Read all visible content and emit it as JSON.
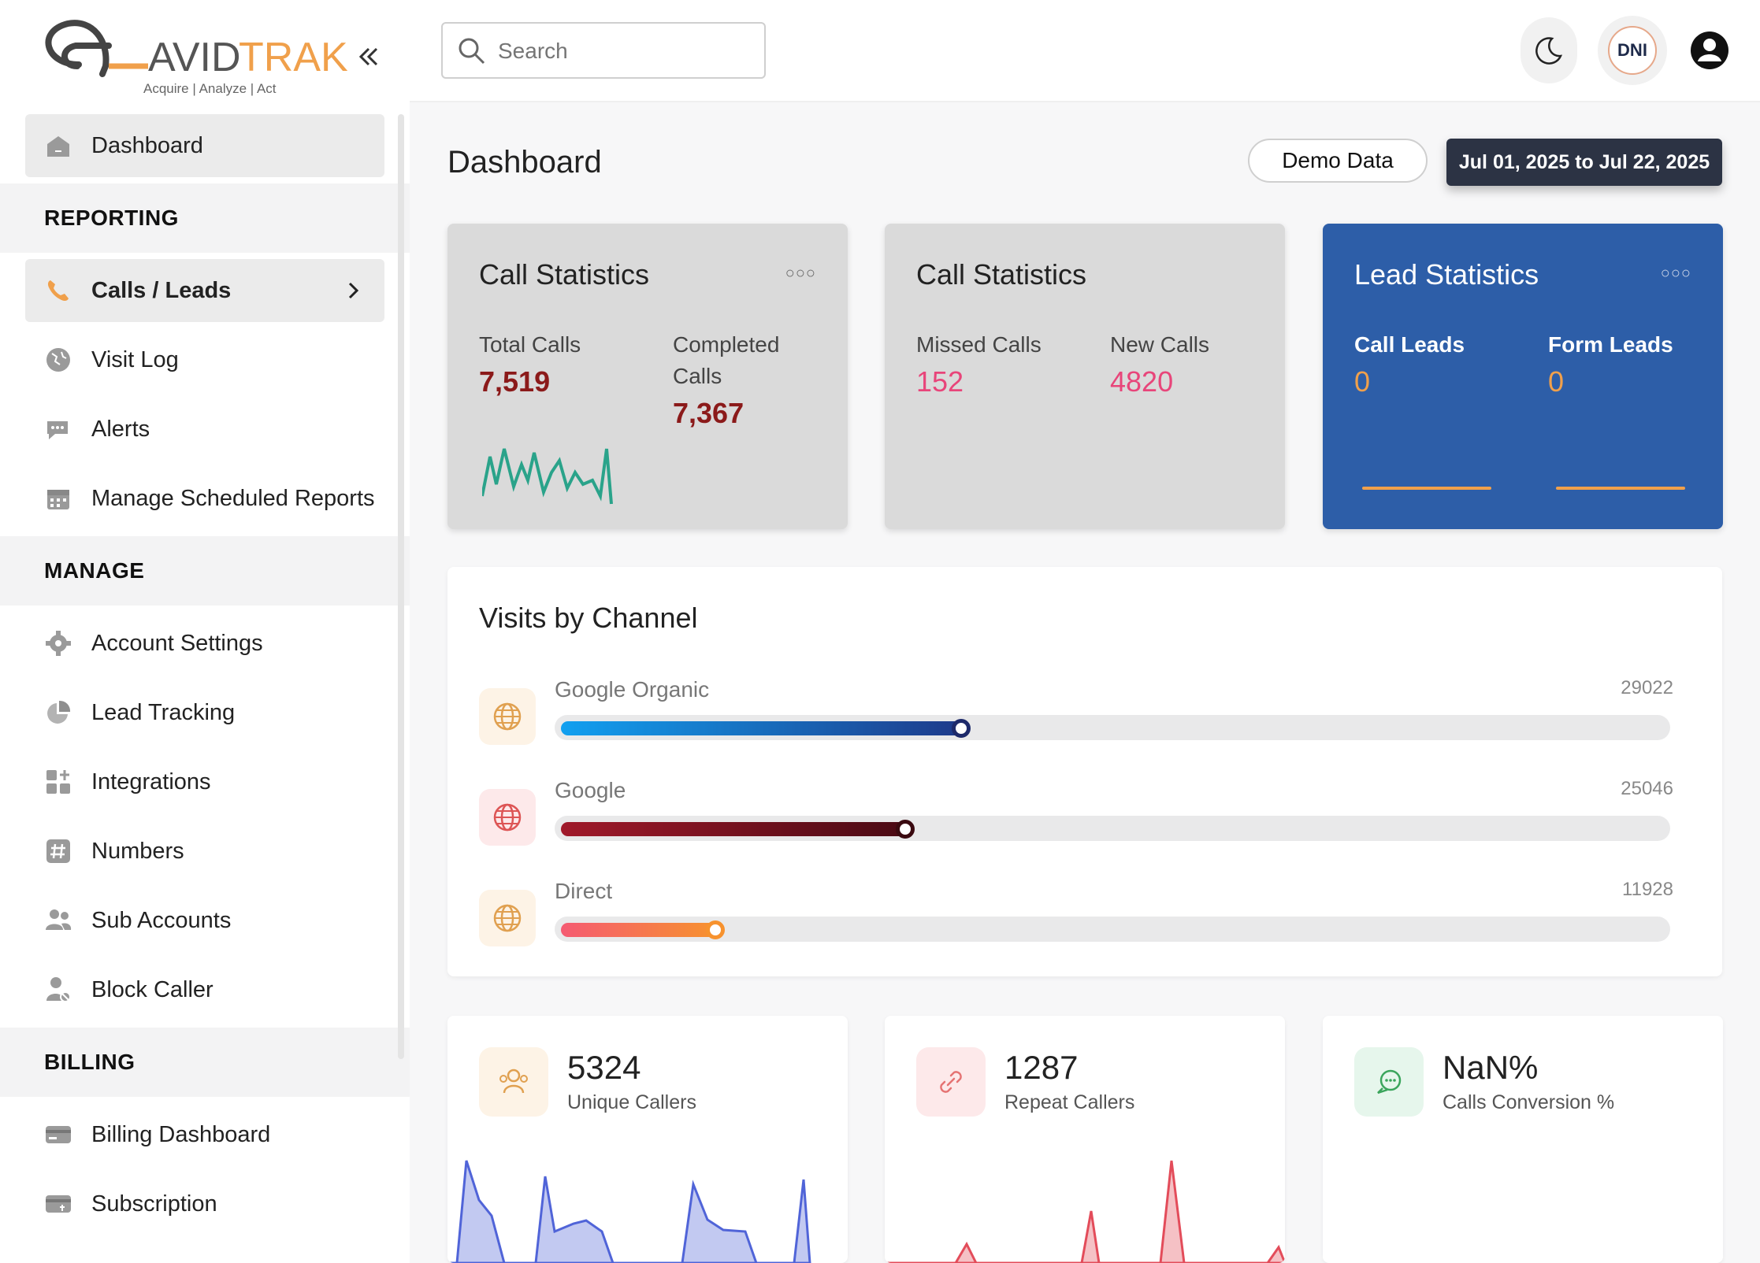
{
  "brand": {
    "name_prefix": "AVID",
    "name_suffix": "TRAK",
    "tagline": "Acquire | Analyze | Act"
  },
  "search": {
    "placeholder": "Search"
  },
  "header": {
    "dni_label": "DNI"
  },
  "sidebar": {
    "dashboard": "Dashboard",
    "sections": {
      "reporting": "REPORTING",
      "manage": "MANAGE",
      "billing": "BILLING"
    },
    "reporting_items": [
      "Calls / Leads",
      "Visit Log",
      "Alerts",
      "Manage Scheduled Reports"
    ],
    "manage_items": [
      "Account Settings",
      "Lead Tracking",
      "Integrations",
      "Numbers",
      "Sub Accounts",
      "Block Caller"
    ],
    "billing_items": [
      "Billing Dashboard",
      "Subscription"
    ]
  },
  "page": {
    "title": "Dashboard",
    "demo_button": "Demo Data",
    "date_range": "Jul 01, 2025 to Jul 22, 2025"
  },
  "cards": {
    "call_stats_1": {
      "title": "Call Statistics",
      "total_label": "Total Calls",
      "total_value": "7,519",
      "completed_label_1": "Completed",
      "completed_label_2": "Calls",
      "completed_value": "7,367"
    },
    "call_stats_2": {
      "title": "Call Statistics",
      "missed_label": "Missed Calls",
      "missed_value": "152",
      "new_label": "New Calls",
      "new_value": "4820"
    },
    "lead_stats": {
      "title": "Lead Statistics",
      "call_leads_label": "Call Leads",
      "call_leads_value": "0",
      "form_leads_label": "Form Leads",
      "form_leads_value": "0"
    }
  },
  "visits": {
    "title": "Visits by Channel",
    "channels": [
      {
        "name": "Google Organic",
        "value": "29022",
        "fraction": 0.36
      },
      {
        "name": "Google",
        "value": "25046",
        "fraction": 0.31
      },
      {
        "name": "Direct",
        "value": "11928",
        "fraction": 0.14
      }
    ]
  },
  "metrics": {
    "unique": {
      "value": "5324",
      "label": "Unique Callers"
    },
    "repeat": {
      "value": "1287",
      "label": "Repeat Callers"
    },
    "conversion": {
      "value": "NaN%",
      "label": "Calls Conversion %"
    }
  },
  "colors": {
    "accent_orange": "#f0a04b",
    "dark_red": "#8b1a1a",
    "pink": "#e8457a",
    "lead_blue": "#2d5ea8",
    "sparkline": "#2aa38a",
    "area_blue": "#5064d8",
    "area_red": "#e34c5a"
  },
  "icons": [
    "home-icon",
    "phone-icon",
    "globe-icon",
    "chat-icon",
    "calendar-icon",
    "gear-icon",
    "pie-icon",
    "grid-icon",
    "hash-icon",
    "users-icon",
    "user-block-icon",
    "card-icon",
    "subscription-icon",
    "search-icon",
    "moon-icon",
    "user-icon",
    "chevron-right-icon",
    "double-chevron-left-icon",
    "link-icon"
  ]
}
